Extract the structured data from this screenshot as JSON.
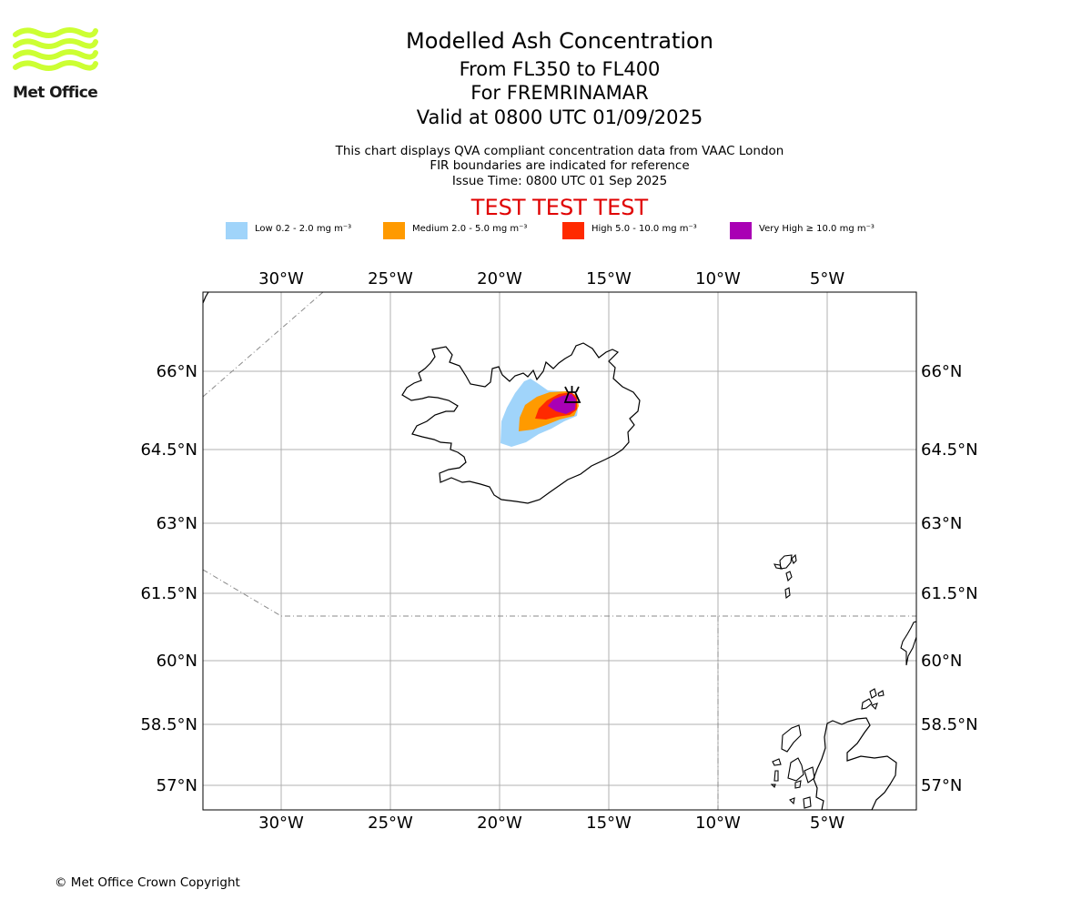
{
  "header": {
    "title": "Modelled Ash Concentration",
    "flight_levels": "From FL350 to FL400",
    "volcano_line": "For FREMRINAMAR",
    "valid_line": "Valid at 0800 UTC 01/09/2025",
    "description_1": "This chart displays QVA compliant concentration data from VAAC London",
    "description_2": "FIR boundaries are indicated for reference",
    "issue_time": "Issue Time: 0800 UTC 01 Sep 2025",
    "test_banner": "TEST TEST TEST",
    "test_color": "#e00000"
  },
  "logo": {
    "text": "Met Office",
    "color": "#ccff33",
    "icon": "met-office-waves-logo"
  },
  "legend": [
    {
      "label": "Low 0.2 - 2.0 mg m⁻³",
      "color": "#a0d4fa"
    },
    {
      "label": "Medium 2.0 - 5.0 mg m⁻³",
      "color": "#ff9a00"
    },
    {
      "label": "High 5.0 - 10.0 mg m⁻³",
      "color": "#ff2a00"
    },
    {
      "label": "Very High ≥ 10.0 mg m⁻³",
      "color": "#a900b4"
    }
  ],
  "map": {
    "lon_ticks": [
      "30°W",
      "25°W",
      "20°W",
      "15°W",
      "10°W",
      "5°W"
    ],
    "lat_ticks": [
      "66°N",
      "64.5°N",
      "63°N",
      "61.5°N",
      "60°N",
      "58.5°N",
      "57°N"
    ],
    "gridlines": true,
    "volcano_symbol": "volcano-icon"
  },
  "footer": {
    "copyright": "© Met Office Crown Copyright"
  }
}
